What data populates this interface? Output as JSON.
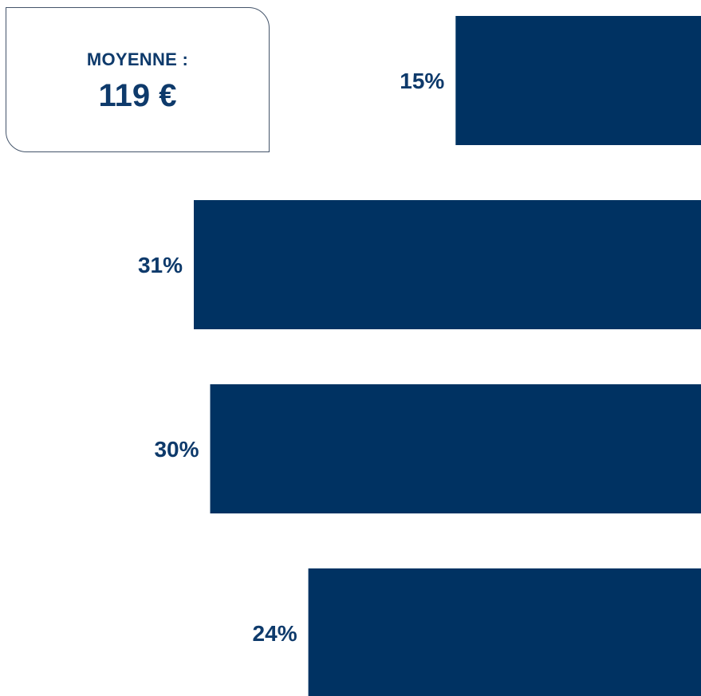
{
  "summary": {
    "label": "MOYENNE :",
    "value": "119 €"
  },
  "colors": {
    "bar": "#003262",
    "label_text": "#0e3a6b"
  },
  "chart_data": {
    "type": "bar",
    "orientation": "horizontal",
    "values": [
      15,
      31,
      30,
      24
    ],
    "labels": [
      "15%",
      "31%",
      "30%",
      "24%"
    ],
    "unit": "%",
    "xlim": [
      0,
      31
    ],
    "bar_alignment": "right",
    "legend": "none",
    "grid": false
  }
}
